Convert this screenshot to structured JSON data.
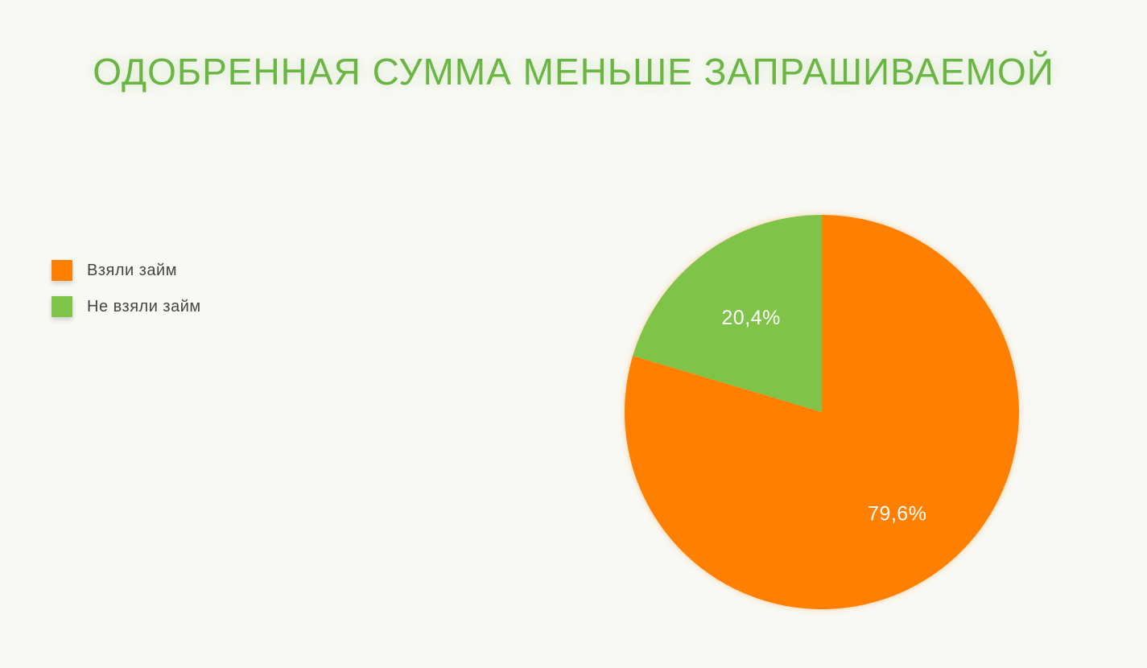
{
  "chart_data": {
    "type": "pie",
    "title": "ОДОБРЕННАЯ СУММА МЕНЬШЕ ЗАПРАШИВАЕМОЙ",
    "legend_position": "left",
    "slices": [
      {
        "label": "Взяли займ",
        "value": 79.6,
        "display": "79,6%",
        "color": "#ff7f00"
      },
      {
        "label": "Не взяли займ",
        "value": 20.4,
        "display": "20,4%",
        "color": "#80c34a"
      }
    ]
  }
}
